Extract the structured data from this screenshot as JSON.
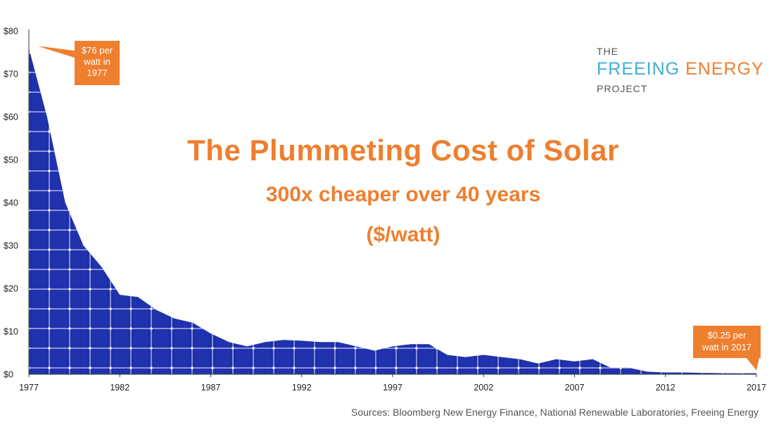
{
  "chart_data": {
    "type": "area",
    "title": "The Plummeting Cost of Solar",
    "subtitle": "300x cheaper over 40 years",
    "unit_label": "($/watt)",
    "x": [
      1977,
      1978,
      1979,
      1980,
      1981,
      1982,
      1983,
      1984,
      1985,
      1986,
      1987,
      1988,
      1989,
      1990,
      1991,
      1992,
      1993,
      1994,
      1995,
      1996,
      1997,
      1998,
      1999,
      2000,
      2001,
      2002,
      2003,
      2004,
      2005,
      2006,
      2007,
      2008,
      2009,
      2010,
      2011,
      2012,
      2013,
      2014,
      2015,
      2016,
      2017
    ],
    "values": [
      76.0,
      60.0,
      40.0,
      30.0,
      25.0,
      18.5,
      18.0,
      15.0,
      13.0,
      12.0,
      9.5,
      7.5,
      6.5,
      7.5,
      8.0,
      7.8,
      7.5,
      7.5,
      6.5,
      5.5,
      6.5,
      7.0,
      7.0,
      4.5,
      4.0,
      4.5,
      4.0,
      3.5,
      2.5,
      3.5,
      3.0,
      3.5,
      1.5,
      1.5,
      0.6,
      0.4,
      0.4,
      0.3,
      0.25,
      0.2,
      0.25
    ],
    "xlim": [
      1977,
      2017
    ],
    "ylim": [
      0,
      80
    ],
    "x_ticks": [
      "1977",
      "1982",
      "1987",
      "1992",
      "1997",
      "2002",
      "2007",
      "2012",
      "2017"
    ],
    "y_ticks": [
      "$0",
      "$10",
      "$20",
      "$30",
      "$40",
      "$50",
      "$60",
      "$70",
      "$80"
    ],
    "annotations": [
      {
        "id": "start",
        "lines": [
          "$76 per",
          "watt in",
          "1977"
        ]
      },
      {
        "id": "end",
        "lines": [
          "$0.25 per",
          "watt in 2017"
        ]
      }
    ],
    "fill_color": "#1e2faa",
    "grid_color": "#c9cff0",
    "callout_color": "#ee7f2f",
    "grid": false,
    "source": "Sources: Bloomberg New Energy Finance, National Renewable Laboratories, Freeing Energy"
  },
  "logo": {
    "top": "THE",
    "word1": "FREEING",
    "word2": "ENERGY",
    "bottom": "PROJECT",
    "color1": "#3fb0d3",
    "color2": "#ee7f2f"
  }
}
